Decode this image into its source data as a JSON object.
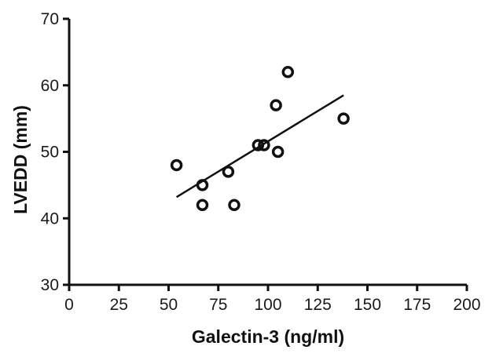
{
  "chart_data": {
    "type": "scatter",
    "xlabel": "Galectin-3 (ng/ml)",
    "ylabel": "LVEDD (mm)",
    "xlim": [
      0,
      200
    ],
    "ylim": [
      30,
      70
    ],
    "xticks": [
      0,
      25,
      50,
      75,
      100,
      125,
      150,
      175,
      200
    ],
    "yticks": [
      30,
      40,
      50,
      60,
      70
    ],
    "grid": false,
    "points": [
      {
        "x": 54,
        "y": 48
      },
      {
        "x": 67,
        "y": 45
      },
      {
        "x": 67,
        "y": 42
      },
      {
        "x": 80,
        "y": 47
      },
      {
        "x": 83,
        "y": 42
      },
      {
        "x": 95,
        "y": 51
      },
      {
        "x": 98,
        "y": 51
      },
      {
        "x": 104,
        "y": 57
      },
      {
        "x": 105,
        "y": 50
      },
      {
        "x": 110,
        "y": 62
      },
      {
        "x": 138,
        "y": 55
      }
    ],
    "trendline": {
      "x": [
        54,
        138
      ],
      "y": [
        43.2,
        58.5
      ]
    },
    "colors": {
      "axis": "#111111",
      "marker": "#111111",
      "line": "#111111"
    }
  }
}
